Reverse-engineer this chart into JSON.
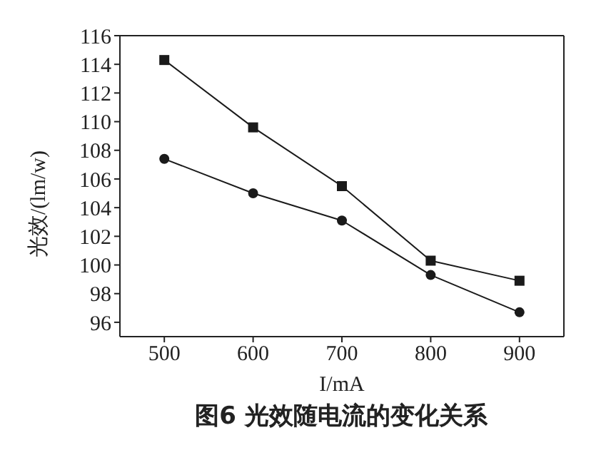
{
  "chart_data": {
    "type": "line",
    "xlabel": "I/mA",
    "ylabel": "光效/(lm/w)",
    "annotations": [
      "图6  光效随电流的变化关系"
    ],
    "x": [
      500,
      600,
      700,
      800,
      900
    ],
    "series": [
      {
        "color": "#1a1a1a",
        "marker": "square",
        "values": [
          114.3,
          109.6,
          105.5,
          100.3,
          98.9
        ]
      },
      {
        "color": "#1a1a1a",
        "marker": "circle",
        "values": [
          107.4,
          105.0,
          103.1,
          99.3,
          96.7
        ]
      }
    ],
    "xlim": [
      450,
      950
    ],
    "xticks": [
      500,
      600,
      700,
      800,
      900
    ],
    "ylim": [
      95,
      116
    ],
    "yticks": [
      96,
      98,
      100,
      102,
      104,
      106,
      108,
      110,
      112,
      114,
      116
    ],
    "grid": false,
    "legend": false
  }
}
